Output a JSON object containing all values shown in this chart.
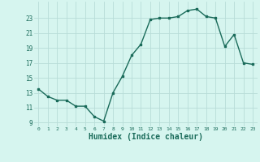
{
  "x": [
    0,
    1,
    2,
    3,
    4,
    5,
    6,
    7,
    8,
    9,
    10,
    11,
    12,
    13,
    14,
    15,
    16,
    17,
    18,
    19,
    20,
    21,
    22,
    23
  ],
  "y": [
    13.5,
    12.5,
    12.0,
    12.0,
    11.2,
    11.2,
    9.8,
    9.2,
    13.0,
    15.2,
    18.0,
    19.5,
    22.8,
    23.0,
    23.0,
    23.2,
    24.0,
    24.2,
    23.2,
    23.0,
    19.2,
    20.8,
    17.0,
    16.8
  ],
  "line_color": "#1a6b5a",
  "marker": "s",
  "markersize": 2,
  "linewidth": 1.0,
  "bg_color": "#d6f5ef",
  "grid_color": "#b8ddd8",
  "xlabel": "Humidex (Indice chaleur)",
  "xlabel_fontsize": 7,
  "ylabel_ticks": [
    9,
    11,
    13,
    15,
    17,
    19,
    21,
    23
  ],
  "xtick_labels": [
    "0",
    "1",
    "2",
    "3",
    "4",
    "5",
    "6",
    "7",
    "8",
    "9",
    "10",
    "11",
    "12",
    "13",
    "14",
    "15",
    "16",
    "17",
    "18",
    "19",
    "20",
    "21",
    "22",
    "23"
  ],
  "ylim": [
    8.5,
    25.2
  ],
  "xlim": [
    -0.5,
    23.5
  ]
}
